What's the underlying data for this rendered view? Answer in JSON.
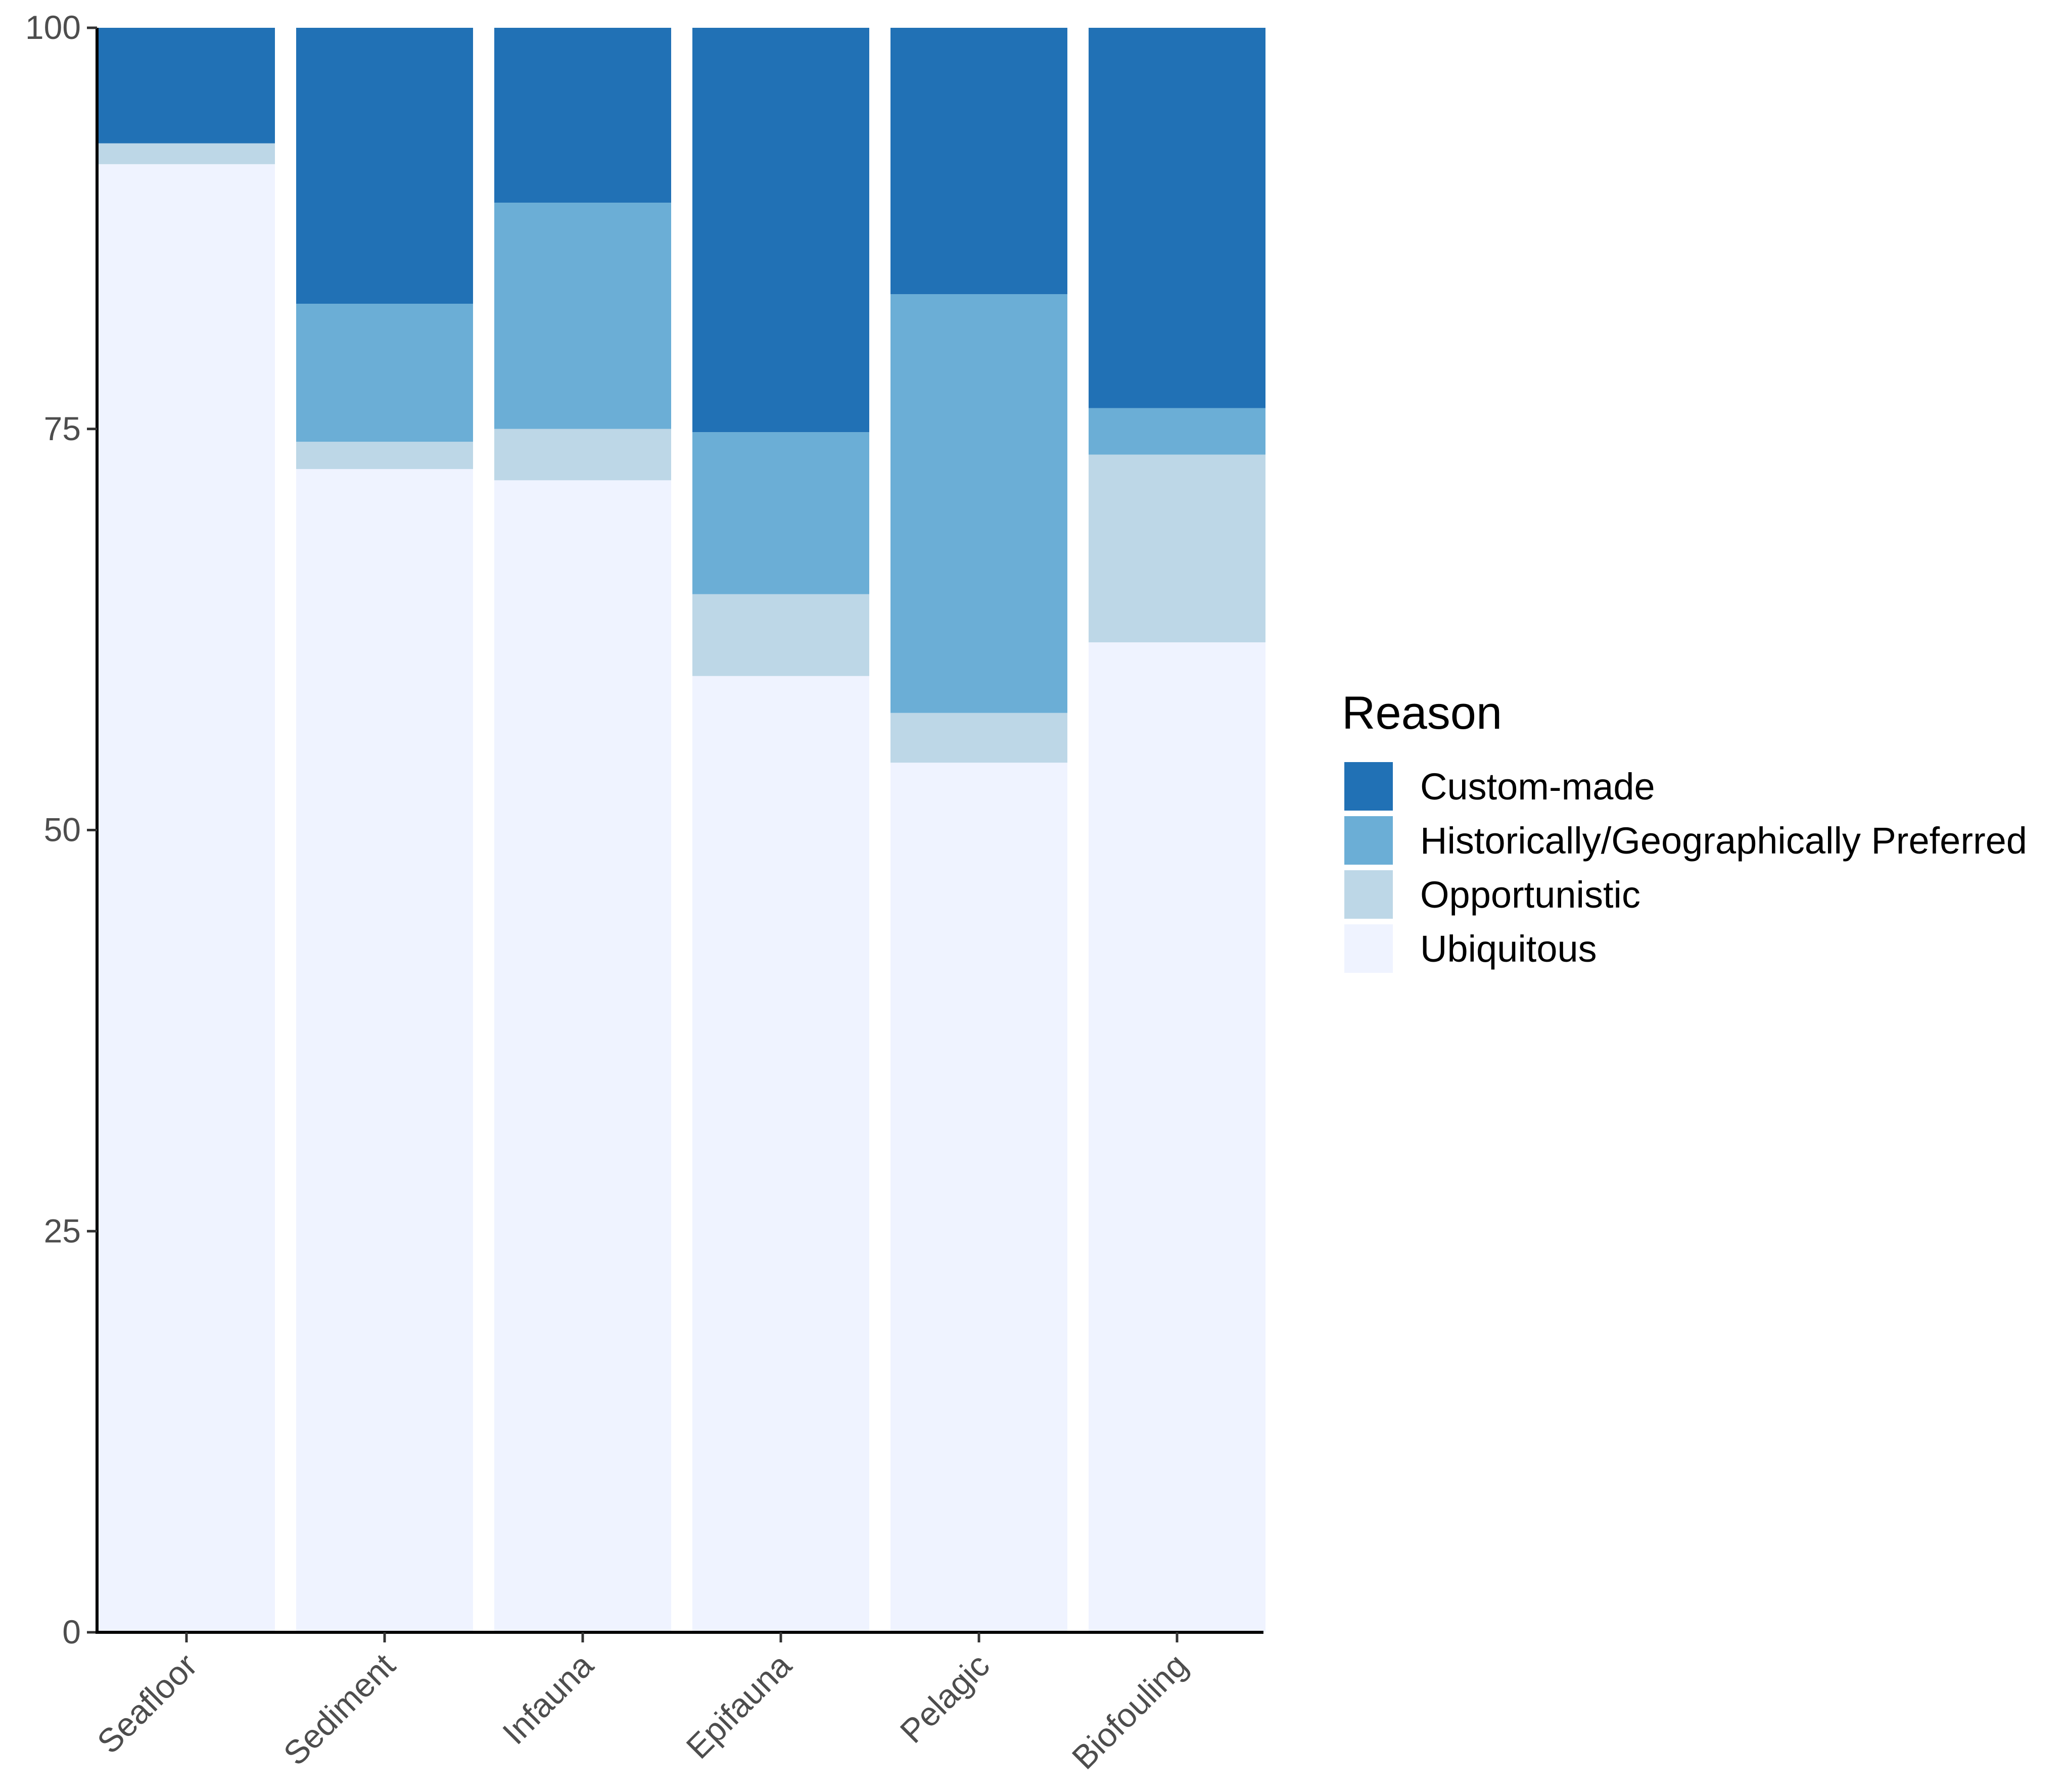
{
  "chart_data": {
    "type": "bar",
    "stacked": true,
    "title": "",
    "xlabel": "",
    "ylabel": "",
    "ylim": [
      0,
      100
    ],
    "yticks": [
      0,
      25,
      50,
      75,
      100
    ],
    "categories": [
      "Seafloor",
      "Sediment",
      "Infauna",
      "Epifauna",
      "Pelagic",
      "Biofouling"
    ],
    "series": [
      {
        "name": "Ubiquitous",
        "color": "#eff3ff",
        "values": [
          91.5,
          72.5,
          71.8,
          59.6,
          54.2,
          61.7
        ]
      },
      {
        "name": "Opportunistic",
        "color": "#bdd7e7",
        "values": [
          1.3,
          1.7,
          3.2,
          5.1,
          3.1,
          11.7
        ]
      },
      {
        "name": "Historically/Geographically Preferred",
        "color": "#6baed6",
        "values": [
          0,
          8.6,
          14.1,
          10.1,
          26.1,
          2.9
        ]
      },
      {
        "name": "Custom-made",
        "color": "#2171b5",
        "values": [
          7.2,
          17.2,
          10.9,
          25.2,
          16.6,
          23.7
        ]
      }
    ],
    "legend": {
      "title": "Reason",
      "position": "right",
      "order": [
        "Custom-made",
        "Historically/Geographically Preferred",
        "Opportunistic",
        "Ubiquitous"
      ]
    },
    "grid": false
  }
}
